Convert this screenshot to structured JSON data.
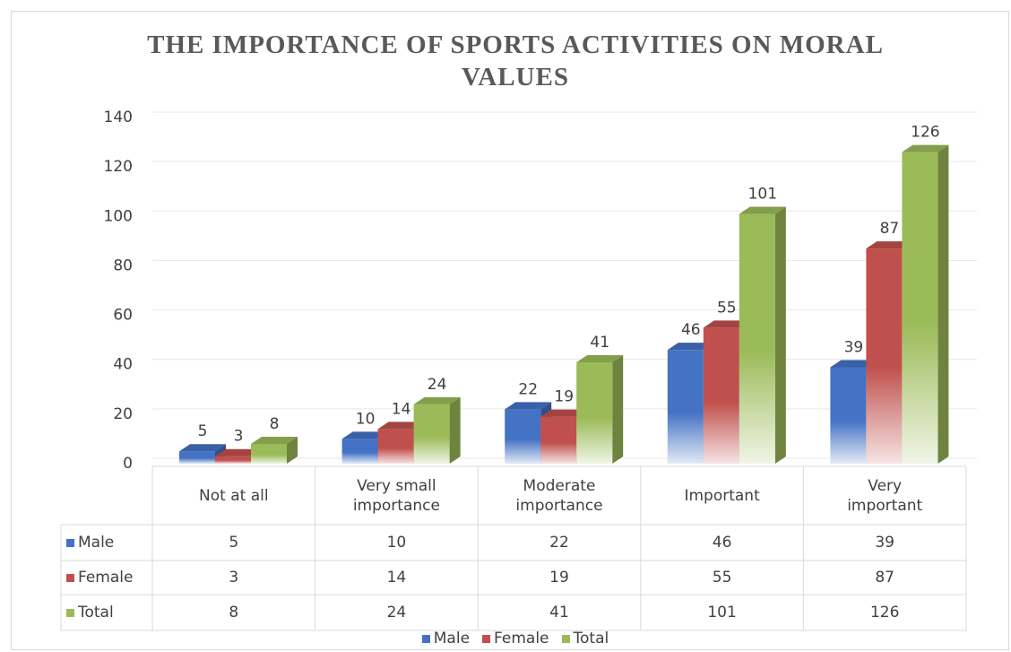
{
  "chart_data": {
    "type": "bar",
    "title": "THE IMPORTANCE OF SPORTS ACTIVITIES ON MORAL VALUES",
    "categories": [
      "Not at all",
      "Very small importance",
      "Moderate importance",
      "Important",
      "Very important"
    ],
    "series": [
      {
        "name": "Male",
        "color": "#4472c4",
        "values": [
          5,
          10,
          22,
          46,
          39
        ]
      },
      {
        "name": "Female",
        "color": "#c0504d",
        "values": [
          3,
          14,
          19,
          55,
          87
        ]
      },
      {
        "name": "Total",
        "color": "#9bbb59",
        "values": [
          8,
          24,
          41,
          101,
          126
        ]
      }
    ],
    "ylim": [
      0,
      140
    ],
    "yticks": [
      0,
      20,
      40,
      60,
      80,
      100,
      120,
      140
    ],
    "grid": true
  }
}
